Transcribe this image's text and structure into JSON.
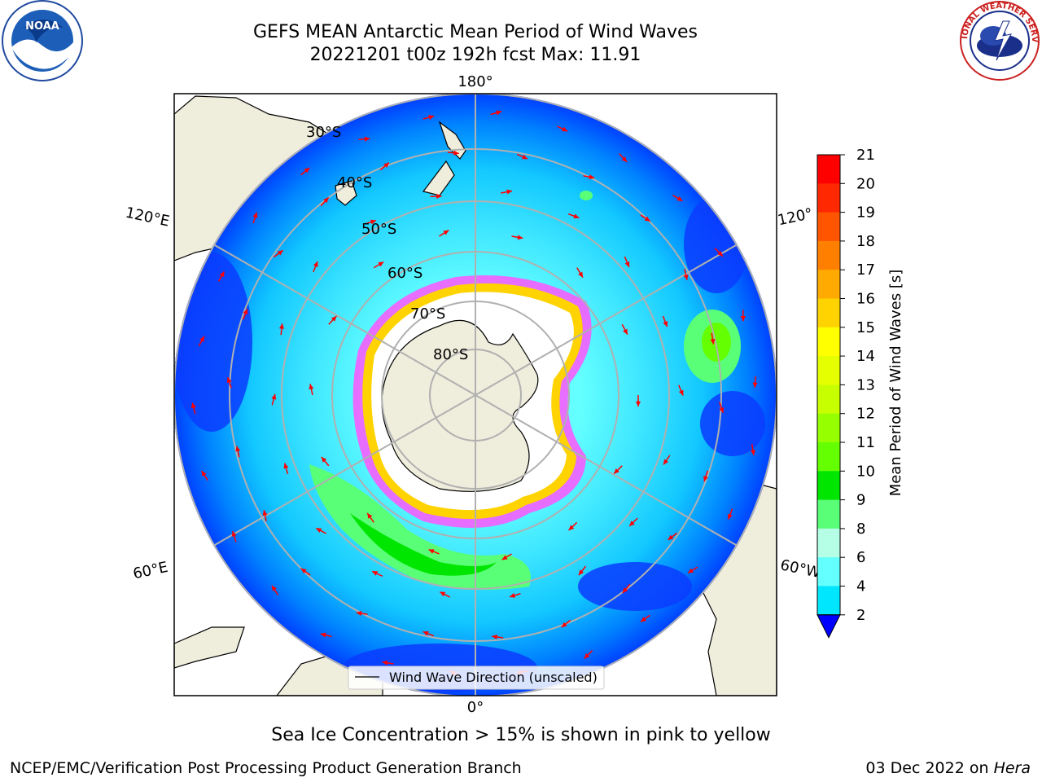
{
  "header": {
    "title_line1": "GEFS MEAN Antarctic Mean Period of Wind Waves",
    "title_line2": "20221201 t00z 192h fcst   Max: 11.91"
  },
  "logos": {
    "left": "NOAA",
    "right": "NATIONAL WEATHER SERVICE"
  },
  "map": {
    "projection": "south-polar-stereographic",
    "longitude_labels": {
      "top": "180°",
      "bottom": "0°",
      "upper_left": "120°E",
      "lower_left": "60°E",
      "upper_right": "120°",
      "lower_right": "60°W"
    },
    "latitude_labels": [
      "30°S",
      "40°S",
      "50°S",
      "60°S",
      "70°S",
      "80°S"
    ],
    "legend_label": "Wind Wave Direction (unscaled)",
    "arrow_color": "#ff0000",
    "land_color": "#efeddc",
    "ice_color": "#ffffff"
  },
  "colorbar": {
    "label": "Mean Period of Wind Waves [s]",
    "ticks": [
      "21",
      "20",
      "19",
      "18",
      "17",
      "16",
      "15",
      "14",
      "13",
      "12",
      "11",
      "10",
      "9",
      "8",
      "6",
      "4",
      "2"
    ],
    "colors": [
      "#ff0000",
      "#ff2800",
      "#ff5500",
      "#ff8000",
      "#ffaa00",
      "#ffd300",
      "#ffff00",
      "#e6ff00",
      "#c8ff00",
      "#96ff00",
      "#64ff00",
      "#00e600",
      "#5aff78",
      "#b4ffe6",
      "#64ffff",
      "#00e6ff",
      "#0082ff"
    ],
    "under_color": "#0000ff"
  },
  "captions": {
    "sea_ice": "Sea Ice Concentration > 15% is shown in pink to yellow",
    "producer": "NCEP/EMC/Verification Post Processing Product Generation Branch",
    "date": "03 Dec 2022 on",
    "host": "Hera"
  }
}
